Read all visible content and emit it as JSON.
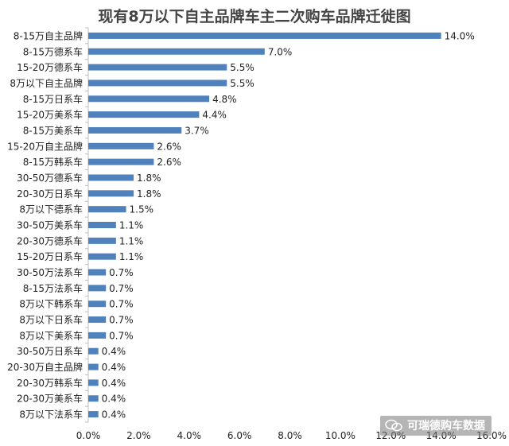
{
  "title": "现有8万以下自主品牌车主二次购车品牌迁徙图",
  "watermark": {
    "text": "可瑞德购车数据",
    "icon": "wechat-icon"
  },
  "colors": {
    "bar": "#4f81bd",
    "axis": "#bfbfbf",
    "text": "#222222"
  },
  "chart_data": {
    "type": "bar",
    "orientation": "horizontal",
    "categories": [
      "8-15万自主品牌",
      "8-15万德系车",
      "15-20万德系车",
      "8万以下自主品牌",
      "8-15万日系车",
      "15-20万美系车",
      "8-15万美系车",
      "15-20万自主品牌",
      "8-15万韩系车",
      "30-50万德系车",
      "20-30万日系车",
      "8万以下德系车",
      "30-50万美系车",
      "20-30万德系车",
      "15-20万日系车",
      "30-50万法系车",
      "8-15万法系车",
      "8万以下韩系车",
      "8万以下日系车",
      "8万以下美系车",
      "30-50万日系车",
      "20-30万自主品牌",
      "20-30万韩系车",
      "20-30万美系车",
      "8万以下法系车"
    ],
    "values": [
      14.0,
      7.0,
      5.5,
      5.5,
      4.8,
      4.4,
      3.7,
      2.6,
      2.6,
      1.8,
      1.8,
      1.5,
      1.1,
      1.1,
      1.1,
      0.7,
      0.7,
      0.7,
      0.7,
      0.7,
      0.4,
      0.4,
      0.4,
      0.4,
      0.4
    ],
    "data_labels": [
      "14.0%",
      "7.0%",
      "5.5%",
      "5.5%",
      "4.8%",
      "4.4%",
      "3.7%",
      "2.6%",
      "2.6%",
      "1.8%",
      "1.8%",
      "1.5%",
      "1.1%",
      "1.1%",
      "1.1%",
      "0.7%",
      "0.7%",
      "0.7%",
      "0.7%",
      "0.7%",
      "0.4%",
      "0.4%",
      "0.4%",
      "0.4%",
      "0.4%"
    ],
    "xlim": [
      0,
      16
    ],
    "xticks": [
      "0.0%",
      "2.0%",
      "4.0%",
      "6.0%",
      "8.0%",
      "10.0%",
      "12.0%",
      "14.0%",
      "16.0%"
    ],
    "grid": false,
    "legend": "none"
  }
}
